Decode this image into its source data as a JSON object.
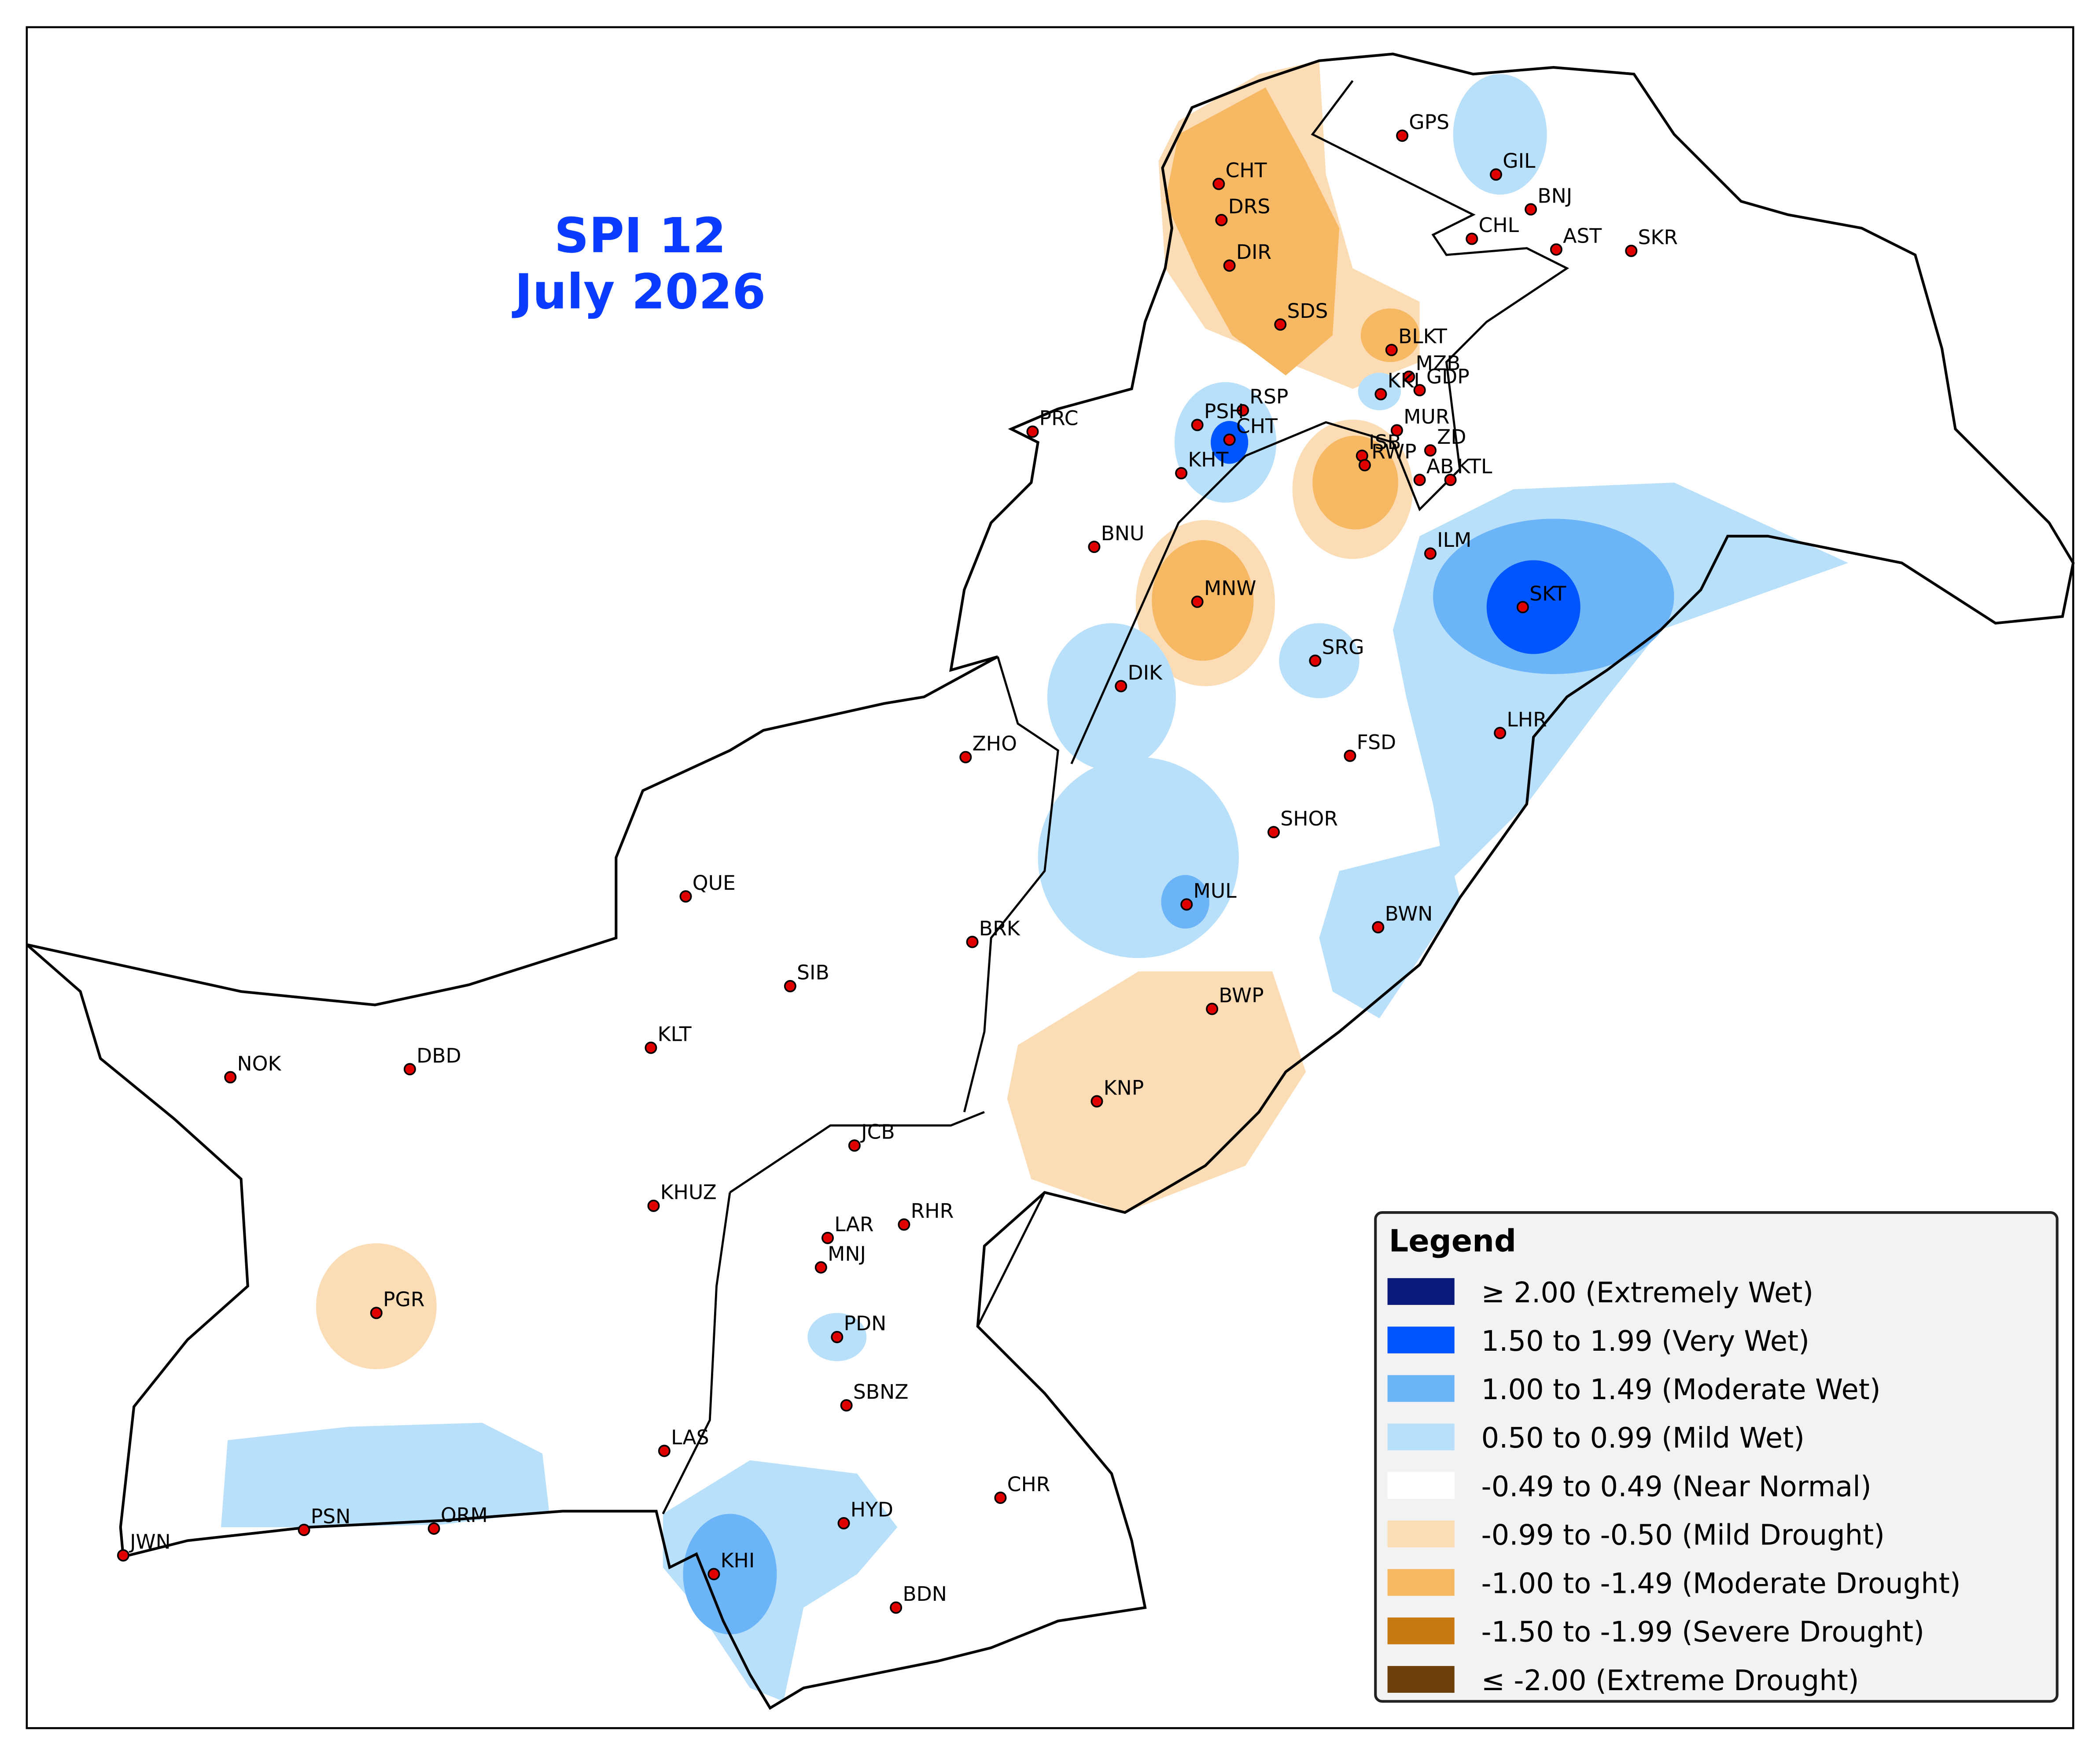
{
  "title": {
    "line1": "SPI 12",
    "line2": "July 2026"
  },
  "stations": [
    "GPS",
    "GIL",
    "BNJ",
    "CHL",
    "AST",
    "SKR",
    "CHT",
    "DRS",
    "DIR",
    "SDS",
    "BLKT",
    "MZB",
    "KKI",
    "GDP",
    "RSP",
    "PSH",
    "CHT",
    "MUR",
    "ISB",
    "ZD",
    "RWP",
    "AB",
    "KTL",
    "PRC",
    "KHT",
    "BNU",
    "ILM",
    "MNW",
    "SKT",
    "SRG",
    "DIK",
    "LHR",
    "ZHO",
    "FSD",
    "SHOR",
    "QUE",
    "MUL",
    "BWN",
    "BRK",
    "SIB",
    "BWP",
    "KLT",
    "NOK",
    "DBD",
    "KNP",
    "JCB",
    "KHUZ",
    "LAR",
    "RHR",
    "MNJ",
    "PGR",
    "PDN",
    "SBNZ",
    "LAS",
    "CHR",
    "HYD",
    "PSN",
    "ORM",
    "JWN",
    "KHI",
    "BDN"
  ],
  "legend": {
    "title": "Legend",
    "items": [
      {
        "label": "≥ 2.00 (Extremely Wet)",
        "color": "#0a1a7a"
      },
      {
        "label": "1.50 to 1.99 (Very Wet)",
        "color": "#0055ff"
      },
      {
        "label": "1.00 to 1.49 (Moderate Wet)",
        "color": "#6cb4f8"
      },
      {
        "label": "0.50 to 0.99 (Mild Wet)",
        "color": "#b8e0fa"
      },
      {
        "label": "-0.49 to 0.49 (Near Normal)",
        "color": "#ffffff"
      },
      {
        "label": "-0.99 to -0.50 (Mild Drought)",
        "color": "#fbdcb5"
      },
      {
        "label": "-1.00 to -1.49 (Moderate Drought)",
        "color": "#f6b862"
      },
      {
        "label": "-1.50 to -1.99 (Severe Drought)",
        "color": "#c87a10"
      },
      {
        "label": "≤ -2.00 (Extreme Drought)",
        "color": "#6b3e0a"
      }
    ]
  }
}
